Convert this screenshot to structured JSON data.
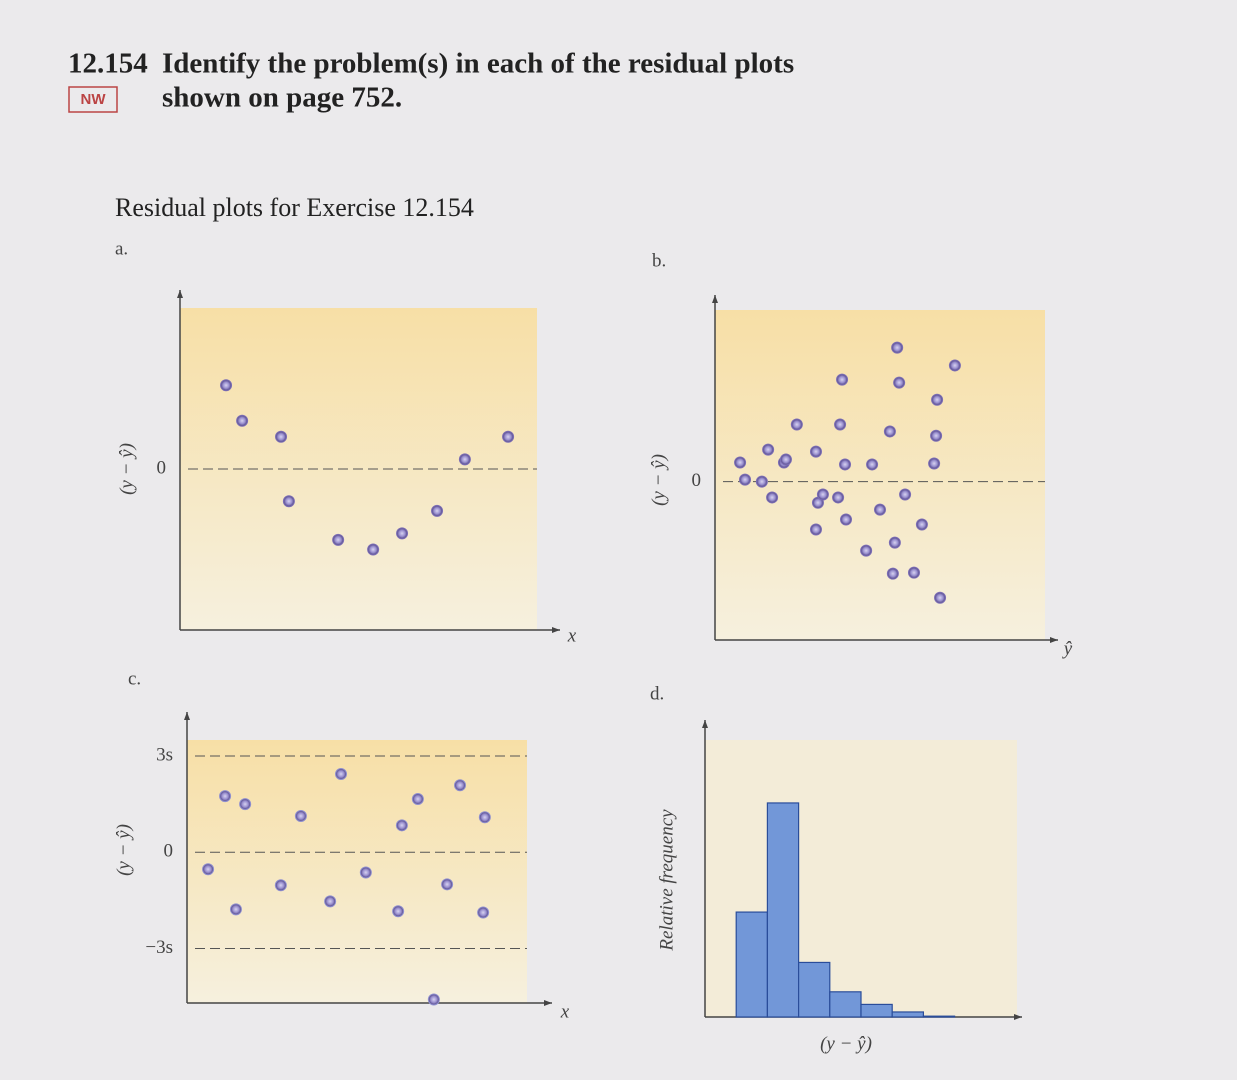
{
  "header": {
    "number": "12.154",
    "badge": "NW",
    "question": [
      "Identify the problem(s) in each of the residual plots",
      "shown on page 752."
    ],
    "caption": "Residual plots for Exercise 12.154"
  },
  "chart_data": [
    {
      "type": "scatter",
      "label": "a.",
      "xlabel": "x",
      "ylabel": "(y − ŷ)",
      "x": [
        1.29,
        1.74,
        2.83,
        3.05,
        4.43,
        5.41,
        6.22,
        7.2,
        7.98,
        9.19
      ],
      "values": [
        2.6,
        1.5,
        1.0,
        -1.0,
        -2.2,
        -2.5,
        -2.0,
        -1.3,
        0.3,
        1.0
      ],
      "xlim": [
        0,
        10
      ],
      "ylim": [
        -5,
        5
      ],
      "yticks": [
        0
      ],
      "grid": true,
      "color": "#7b6db4"
    },
    {
      "type": "scatter",
      "label": "b.",
      "xlabel": "ŷ",
      "ylabel": "(y − ŷ)",
      "x": [
        0.76,
        0.91,
        1.42,
        1.61,
        1.73,
        2.09,
        2.48,
        2.15,
        3.06,
        3.12,
        3.06,
        3.85,
        3.79,
        3.73,
        3.94,
        3.97,
        4.58,
        4.76,
        5.0,
        5.52,
        5.58,
        5.3,
        5.45,
        5.39,
        5.76,
        6.03,
        6.27,
        6.73,
        6.7,
        6.64,
        6.82,
        7.27,
        3.27
      ],
      "values": [
        0.58,
        0.06,
        0,
        0.97,
        -0.48,
        0.58,
        1.73,
        0.67,
        0.91,
        -0.64,
        -1.45,
        3.09,
        1.73,
        -0.48,
        0.52,
        -1.15,
        -2.09,
        0.52,
        -0.85,
        4.06,
        3.0,
        1.52,
        -1.85,
        -2.79,
        -0.39,
        -2.76,
        -1.3,
        2.48,
        1.39,
        0.55,
        -3.52,
        3.52,
        -0.39
      ],
      "xlim": [
        0,
        10
      ],
      "ylim": [
        -4.8,
        5.2
      ],
      "yticks": [
        0
      ],
      "grid": true,
      "color": "#7b6db4"
    },
    {
      "type": "scatter",
      "label": "c.",
      "xlabel": "x",
      "ylabel": "(y − ŷ)",
      "x": [
        0.62,
        1.12,
        1.44,
        1.71,
        2.76,
        3.35,
        4.21,
        4.53,
        5.26,
        6.21,
        6.32,
        6.79,
        7.26,
        7.65,
        8.03,
        8.76,
        8.71
      ],
      "values": [
        -0.53,
        1.75,
        -1.78,
        1.5,
        -1.03,
        1.13,
        -1.53,
        2.44,
        -0.63,
        -1.84,
        0.84,
        1.66,
        -4.59,
        -1.0,
        2.09,
        1.09,
        -1.88
      ],
      "xlim": [
        0,
        10
      ],
      "ylim": [
        -4.7,
        3.5
      ],
      "yticks": [
        {
          "value": 3,
          "label": "3s"
        },
        0,
        {
          "value": -3,
          "label": "−3s"
        }
      ],
      "grid": true,
      "color": "#8f8fcf"
    },
    {
      "type": "histogram",
      "label": "d.",
      "xlabel": "(y − ŷ)",
      "ylabel": "Relative frequency",
      "bins": [
        1,
        2,
        3,
        4,
        5,
        6,
        7,
        8
      ],
      "values": [
        0.25,
        0.51,
        0.13,
        0.06,
        0.03,
        0.012,
        0.002
      ],
      "xlim": [
        0,
        10
      ],
      "ylim": [
        0,
        0.66
      ],
      "color": "#7297d8"
    }
  ]
}
